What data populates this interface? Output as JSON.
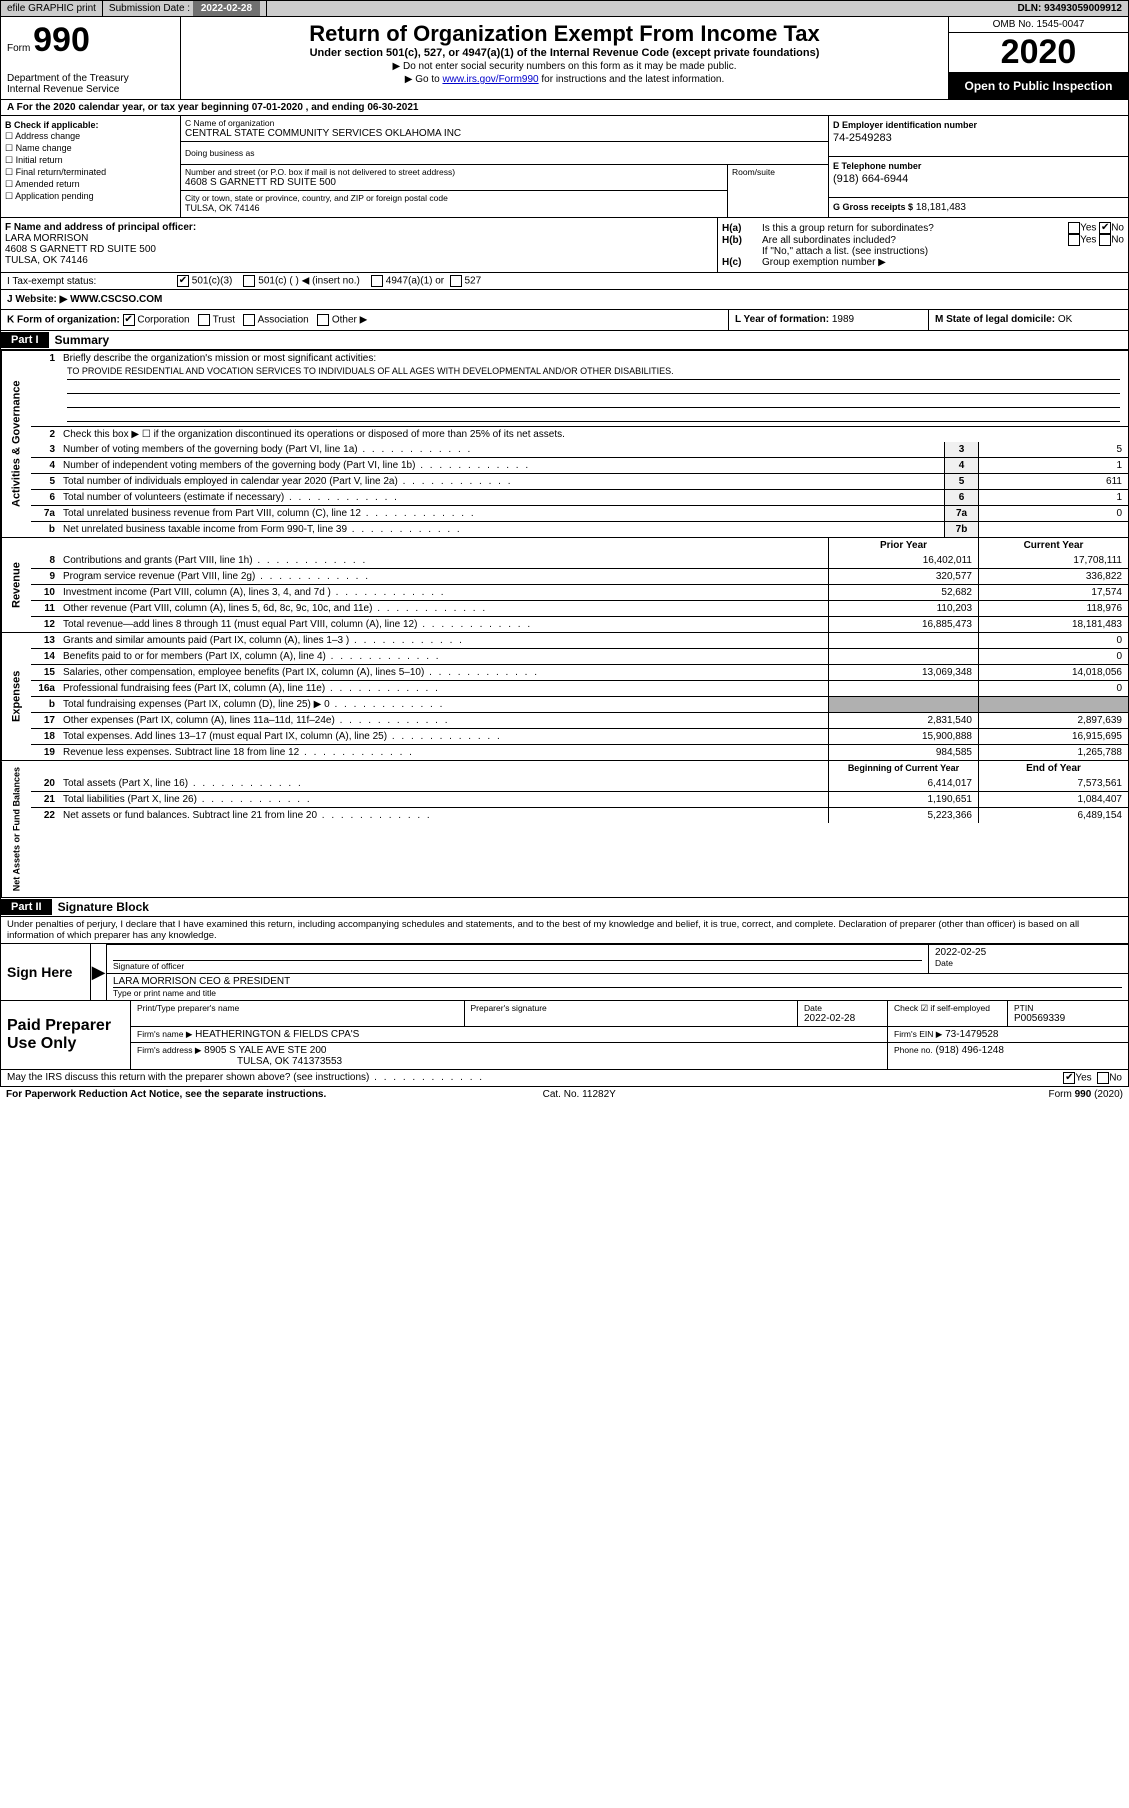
{
  "top": {
    "efile": "efile GRAPHIC print",
    "submission_label": "Submission Date :",
    "submission_date": "2022-02-28",
    "dln_label": "DLN:",
    "dln": "93493059009912"
  },
  "header": {
    "form_word": "Form",
    "form_number": "990",
    "dept": "Department of the Treasury\nInternal Revenue Service",
    "title": "Return of Organization Exempt From Income Tax",
    "subtitle": "Under section 501(c), 527, or 4947(a)(1) of the Internal Revenue Code (except private foundations)",
    "note1": "Do not enter social security numbers on this form as it may be made public.",
    "note2_prefix": "Go to ",
    "note2_link": "www.irs.gov/Form990",
    "note2_suffix": " for instructions and the latest information.",
    "omb": "OMB No. 1545-0047",
    "year": "2020",
    "open": "Open to Public Inspection"
  },
  "row_a": "A For the 2020 calendar year, or tax year beginning 07-01-2020    , and ending 06-30-2021",
  "b": {
    "label": "B Check if applicable:",
    "items": [
      "Address change",
      "Name change",
      "Initial return",
      "Final return/terminated",
      "Amended return",
      "Application pending"
    ]
  },
  "c": {
    "name_label": "C Name of organization",
    "name": "CENTRAL STATE COMMUNITY SERVICES OKLAHOMA INC",
    "dba_label": "Doing business as",
    "street_label": "Number and street (or P.O. box if mail is not delivered to street address)",
    "room_label": "Room/suite",
    "street": "4608 S GARNETT RD SUITE 500",
    "city_label": "City or town, state or province, country, and ZIP or foreign postal code",
    "city": "TULSA, OK  74146"
  },
  "d": {
    "label": "D Employer identification number",
    "value": "74-2549283"
  },
  "e": {
    "label": "E Telephone number",
    "value": "(918) 664-6944"
  },
  "g": {
    "label": "G Gross receipts $",
    "value": "18,181,483"
  },
  "f": {
    "label": "F  Name and address of principal officer:",
    "name": "LARA MORRISON",
    "street": "4608 S GARNETT RD SUITE 500",
    "city": "TULSA, OK  74146"
  },
  "h": {
    "a": "Is this a group return for subordinates?",
    "b": "Are all subordinates included?",
    "b_note": "If \"No,\" attach a list. (see instructions)",
    "c": "Group exemption number ▶"
  },
  "i": {
    "label": "I   Tax-exempt status:",
    "opt1": "501(c)(3)",
    "opt2": "501(c) (  ) ◀ (insert no.)",
    "opt3": "4947(a)(1) or",
    "opt4": "527"
  },
  "j": {
    "label": "J   Website: ▶",
    "value": "WWW.CSCSO.COM"
  },
  "k": {
    "label": "K Form of organization:",
    "opts": [
      "Corporation",
      "Trust",
      "Association",
      "Other ▶"
    ]
  },
  "l": {
    "label": "L Year of formation:",
    "value": "1989"
  },
  "m": {
    "label": "M State of legal domicile:",
    "value": "OK"
  },
  "part1": {
    "tag": "Part I",
    "title": "Summary",
    "l1_label": "Briefly describe the organization's mission or most significant activities:",
    "l1_text": "TO PROVIDE RESIDENTIAL AND VOCATION SERVICES TO INDIVIDUALS OF ALL AGES WITH DEVELOPMENTAL AND/OR OTHER DISABILITIES.",
    "l2": "Check this box ▶ ☐  if the organization discontinued its operations or disposed of more than 25% of its net assets.",
    "lines_gov": [
      {
        "n": "3",
        "d": "Number of voting members of the governing body (Part VI, line 1a)",
        "k": "3",
        "v": "5"
      },
      {
        "n": "4",
        "d": "Number of independent voting members of the governing body (Part VI, line 1b)",
        "k": "4",
        "v": "1"
      },
      {
        "n": "5",
        "d": "Total number of individuals employed in calendar year 2020 (Part V, line 2a)",
        "k": "5",
        "v": "611"
      },
      {
        "n": "6",
        "d": "Total number of volunteers (estimate if necessary)",
        "k": "6",
        "v": "1"
      },
      {
        "n": "7a",
        "d": "Total unrelated business revenue from Part VIII, column (C), line 12",
        "k": "7a",
        "v": "0"
      },
      {
        "n": "b",
        "d": "Net unrelated business taxable income from Form 990-T, line 39",
        "k": "7b",
        "v": ""
      }
    ],
    "col_prior": "Prior Year",
    "col_current": "Current Year",
    "revenue": [
      {
        "n": "8",
        "d": "Contributions and grants (Part VIII, line 1h)",
        "p": "16,402,011",
        "c": "17,708,111"
      },
      {
        "n": "9",
        "d": "Program service revenue (Part VIII, line 2g)",
        "p": "320,577",
        "c": "336,822"
      },
      {
        "n": "10",
        "d": "Investment income (Part VIII, column (A), lines 3, 4, and 7d )",
        "p": "52,682",
        "c": "17,574"
      },
      {
        "n": "11",
        "d": "Other revenue (Part VIII, column (A), lines 5, 6d, 8c, 9c, 10c, and 11e)",
        "p": "110,203",
        "c": "118,976"
      },
      {
        "n": "12",
        "d": "Total revenue—add lines 8 through 11 (must equal Part VIII, column (A), line 12)",
        "p": "16,885,473",
        "c": "18,181,483"
      }
    ],
    "expenses": [
      {
        "n": "13",
        "d": "Grants and similar amounts paid (Part IX, column (A), lines 1–3 )",
        "p": "",
        "c": "0"
      },
      {
        "n": "14",
        "d": "Benefits paid to or for members (Part IX, column (A), line 4)",
        "p": "",
        "c": "0"
      },
      {
        "n": "15",
        "d": "Salaries, other compensation, employee benefits (Part IX, column (A), lines 5–10)",
        "p": "13,069,348",
        "c": "14,018,056"
      },
      {
        "n": "16a",
        "d": "Professional fundraising fees (Part IX, column (A), line 11e)",
        "p": "",
        "c": "0"
      },
      {
        "n": "b",
        "d": "Total fundraising expenses (Part IX, column (D), line 25) ▶ 0",
        "p": "GREY",
        "c": "GREY"
      },
      {
        "n": "17",
        "d": "Other expenses (Part IX, column (A), lines 11a–11d, 11f–24e)",
        "p": "2,831,540",
        "c": "2,897,639"
      },
      {
        "n": "18",
        "d": "Total expenses. Add lines 13–17 (must equal Part IX, column (A), line 25)",
        "p": "15,900,888",
        "c": "16,915,695"
      },
      {
        "n": "19",
        "d": "Revenue less expenses. Subtract line 18 from line 12",
        "p": "984,585",
        "c": "1,265,788"
      }
    ],
    "col_begin": "Beginning of Current Year",
    "col_end": "End of Year",
    "netassets": [
      {
        "n": "20",
        "d": "Total assets (Part X, line 16)",
        "p": "6,414,017",
        "c": "7,573,561"
      },
      {
        "n": "21",
        "d": "Total liabilities (Part X, line 26)",
        "p": "1,190,651",
        "c": "1,084,407"
      },
      {
        "n": "22",
        "d": "Net assets or fund balances. Subtract line 21 from line 20",
        "p": "5,223,366",
        "c": "6,489,154"
      }
    ],
    "side_gov": "Activities & Governance",
    "side_rev": "Revenue",
    "side_exp": "Expenses",
    "side_net": "Net Assets or Fund Balances"
  },
  "part2": {
    "tag": "Part II",
    "title": "Signature Block",
    "decl": "Under penalties of perjury, I declare that I have examined this return, including accompanying schedules and statements, and to the best of my knowledge and belief, it is true, correct, and complete. Declaration of preparer (other than officer) is based on all information of which preparer has any knowledge."
  },
  "sign": {
    "label": "Sign Here",
    "sig_officer": "Signature of officer",
    "date_label": "Date",
    "date": "2022-02-25",
    "name_title": "LARA MORRISON  CEO & PRESIDENT",
    "type_label": "Type or print name and title"
  },
  "paid": {
    "label": "Paid Preparer Use Only",
    "pt_name_label": "Print/Type preparer's name",
    "sig_label": "Preparer's signature",
    "pdate_label": "Date",
    "pdate": "2022-02-28",
    "check_label": "Check ☑ if self-employed",
    "ptin_label": "PTIN",
    "ptin": "P00569339",
    "firm_name_label": "Firm's name    ▶",
    "firm_name": "HEATHERINGTON & FIELDS CPA'S",
    "firm_ein_label": "Firm's EIN ▶",
    "firm_ein": "73-1479528",
    "firm_addr_label": "Firm's address ▶",
    "firm_addr1": "8905 S YALE AVE STE 200",
    "firm_addr2": "TULSA, OK  741373553",
    "phone_label": "Phone no.",
    "phone": "(918) 496-1248"
  },
  "discuss": {
    "q": "May the IRS discuss this return with the preparer shown above? (see instructions)",
    "yes": "Yes",
    "no": "No"
  },
  "footer": {
    "left": "For Paperwork Reduction Act Notice, see the separate instructions.",
    "mid": "Cat. No. 11282Y",
    "right": "Form 990 (2020)"
  },
  "colors": {
    "black": "#000000",
    "grey_btn": "#707070",
    "grey_bar": "#cccccc",
    "grey_cell": "#b0b0b0",
    "link": "#0000cc"
  }
}
